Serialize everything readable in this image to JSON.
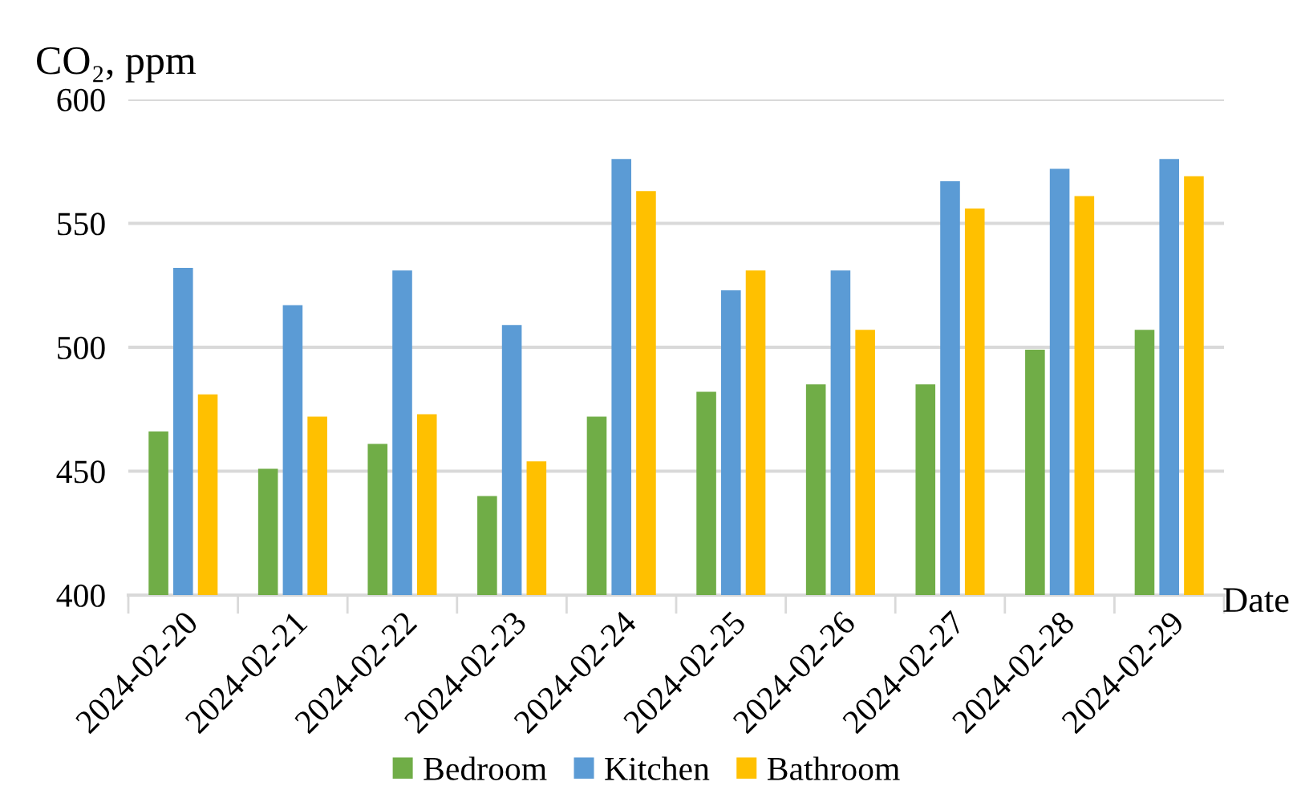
{
  "chart_data": {
    "type": "bar",
    "ylabel": "CO₂, ppm",
    "xlabel": "Date",
    "categories": [
      "2024-02-20",
      "2024-02-21",
      "2024-02-22",
      "2024-02-23",
      "2024-02-24",
      "2024-02-25",
      "2024-02-26",
      "2024-02-27",
      "2024-02-28",
      "2024-02-29"
    ],
    "series": [
      {
        "name": "Bedroom",
        "color": "#70ad47",
        "values": [
          466,
          451,
          461,
          440,
          472,
          482,
          485,
          485,
          499,
          507
        ]
      },
      {
        "name": "Kitchen",
        "color": "#5b9bd5",
        "values": [
          532,
          517,
          531,
          509,
          576,
          523,
          531,
          567,
          572,
          576
        ]
      },
      {
        "name": "Bathroom",
        "color": "#ffc000",
        "values": [
          481,
          472,
          473,
          454,
          563,
          531,
          507,
          556,
          561,
          569
        ]
      }
    ],
    "ylim": [
      400,
      600
    ],
    "yticks": [
      400,
      450,
      500,
      550,
      600
    ],
    "grid": "y",
    "legend": "bottom"
  }
}
